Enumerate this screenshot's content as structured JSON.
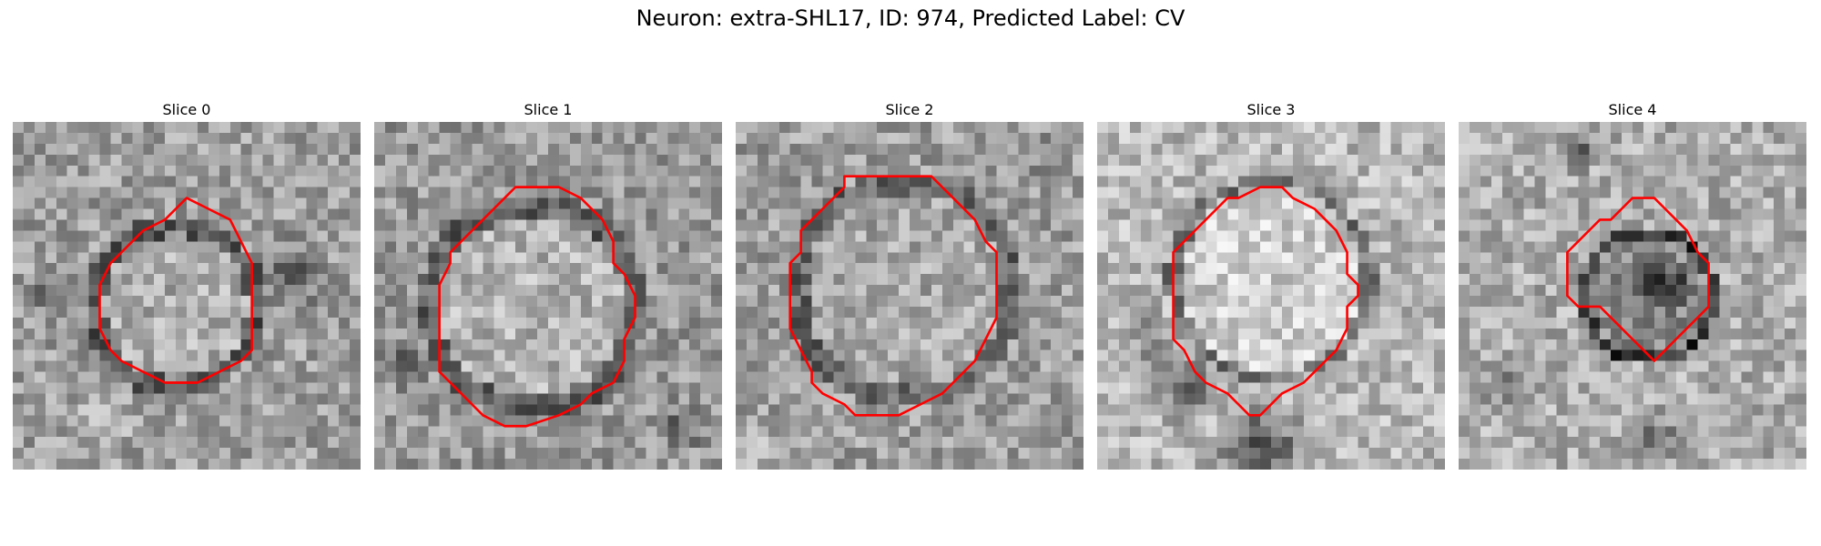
{
  "figure": {
    "title": "Neuron: extra-SHL17, ID: 974, Predicted Label: CV"
  },
  "panels": [
    {
      "title": "Slice 0"
    },
    {
      "title": "Slice 1"
    },
    {
      "title": "Slice 2"
    },
    {
      "title": "Slice 3"
    },
    {
      "title": "Slice 4"
    }
  ],
  "colors": {
    "contour": "#ff0000",
    "image_colormap": "gray",
    "background": "#ffffff"
  }
}
